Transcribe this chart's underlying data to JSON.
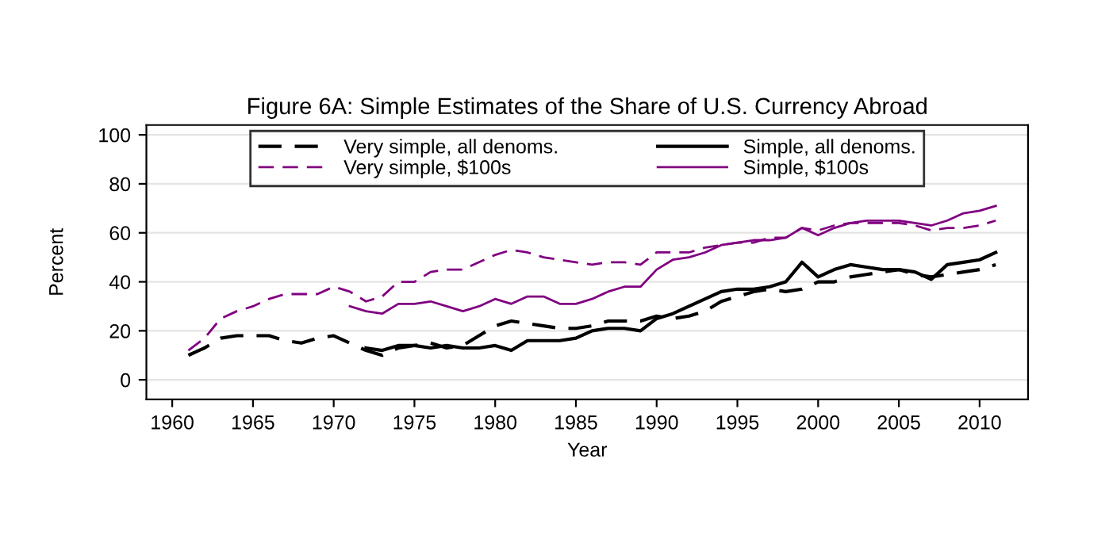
{
  "chart_data": {
    "type": "line",
    "title": "Figure 6A: Simple Estimates of the Share of U.S. Currency Abroad",
    "xlabel": "Year",
    "ylabel": "Percent",
    "xlim": [
      1958.4,
      2013
    ],
    "xticks": [
      1960,
      1965,
      1970,
      1975,
      1980,
      1985,
      1990,
      1995,
      2000,
      2005,
      2010
    ],
    "ylim": [
      -8,
      104
    ],
    "yticks": [
      0,
      20,
      40,
      60,
      80,
      100
    ],
    "grid": "y",
    "legend": "top",
    "marker": "none",
    "series": [
      {
        "name": "Very simple, all denoms.",
        "color": "#000000",
        "line_style": "dashed",
        "x": [
          1961,
          1962,
          1963,
          1964,
          1965,
          1966,
          1967,
          1968,
          1969,
          1970,
          1971,
          1972,
          1973,
          1974,
          1975,
          1976,
          1977,
          1978,
          1979,
          1980,
          1981,
          1982,
          1983,
          1984,
          1985,
          1986,
          1987,
          1988,
          1989,
          1990,
          1991,
          1992,
          1993,
          1994,
          1995,
          1996,
          1997,
          1998,
          1999,
          2000,
          2001,
          2002,
          2003,
          2004,
          2005,
          2006,
          2007,
          2008,
          2009,
          2010,
          2011
        ],
        "values": [
          10,
          13,
          17,
          18,
          18,
          18,
          16,
          15,
          17,
          18,
          15,
          12,
          10,
          13,
          14,
          15,
          13,
          14,
          18,
          22,
          24,
          23,
          22,
          21,
          21,
          22,
          24,
          24,
          24,
          26,
          25,
          26,
          28,
          32,
          34,
          36,
          37,
          36,
          37,
          40,
          40,
          42,
          43,
          44,
          45,
          43,
          42,
          43,
          44,
          45,
          47
        ]
      },
      {
        "name": "Simple, all denoms.",
        "color": "#000000",
        "line_style": "solid",
        "x": [
          1972,
          1973,
          1974,
          1975,
          1976,
          1977,
          1978,
          1979,
          1980,
          1981,
          1982,
          1983,
          1984,
          1985,
          1986,
          1987,
          1988,
          1989,
          1990,
          1991,
          1992,
          1993,
          1994,
          1995,
          1996,
          1997,
          1998,
          1999,
          2000,
          2001,
          2002,
          2003,
          2004,
          2005,
          2006,
          2007,
          2008,
          2009,
          2010,
          2011
        ],
        "values": [
          13,
          12,
          14,
          14,
          13,
          14,
          13,
          13,
          14,
          12,
          16,
          16,
          16,
          17,
          20,
          21,
          21,
          20,
          25,
          27,
          30,
          33,
          36,
          37,
          37,
          38,
          40,
          48,
          42,
          45,
          47,
          46,
          45,
          45,
          44,
          41,
          47,
          48,
          49,
          52
        ]
      },
      {
        "name": "Very simple, $100s",
        "color": "#800080",
        "line_style": "dashed",
        "x": [
          1961,
          1962,
          1963,
          1964,
          1965,
          1966,
          1967,
          1968,
          1969,
          1970,
          1971,
          1972,
          1973,
          1974,
          1975,
          1976,
          1977,
          1978,
          1979,
          1980,
          1981,
          1982,
          1983,
          1984,
          1985,
          1986,
          1987,
          1988,
          1989,
          1990,
          1991,
          1992,
          1993,
          1994,
          1995,
          1996,
          1997,
          1998,
          1999,
          2000,
          2001,
          2002,
          2003,
          2004,
          2005,
          2006,
          2007,
          2008,
          2009,
          2010,
          2011
        ],
        "values": [
          12,
          17,
          25,
          28,
          30,
          33,
          35,
          35,
          35,
          38,
          36,
          32,
          34,
          40,
          40,
          44,
          45,
          45,
          48,
          51,
          53,
          52,
          50,
          49,
          48,
          47,
          48,
          48,
          47,
          52,
          52,
          52,
          54,
          55,
          56,
          56,
          58,
          58,
          62,
          61,
          63,
          64,
          64,
          64,
          64,
          63,
          61,
          62,
          62,
          63,
          65
        ]
      },
      {
        "name": "Simple, $100s",
        "color": "#800080",
        "line_style": "solid",
        "x": [
          1971,
          1972,
          1973,
          1974,
          1975,
          1976,
          1977,
          1978,
          1979,
          1980,
          1981,
          1982,
          1983,
          1984,
          1985,
          1986,
          1987,
          1988,
          1989,
          1990,
          1991,
          1992,
          1993,
          1994,
          1995,
          1996,
          1997,
          1998,
          1999,
          2000,
          2001,
          2002,
          2003,
          2004,
          2005,
          2006,
          2007,
          2008,
          2009,
          2010,
          2011
        ],
        "values": [
          30,
          28,
          27,
          31,
          31,
          32,
          30,
          28,
          30,
          33,
          31,
          34,
          34,
          31,
          31,
          33,
          36,
          38,
          38,
          45,
          49,
          50,
          52,
          55,
          56,
          57,
          57,
          58,
          62,
          59,
          62,
          64,
          65,
          65,
          65,
          64,
          63,
          65,
          68,
          69,
          71
        ]
      }
    ]
  }
}
